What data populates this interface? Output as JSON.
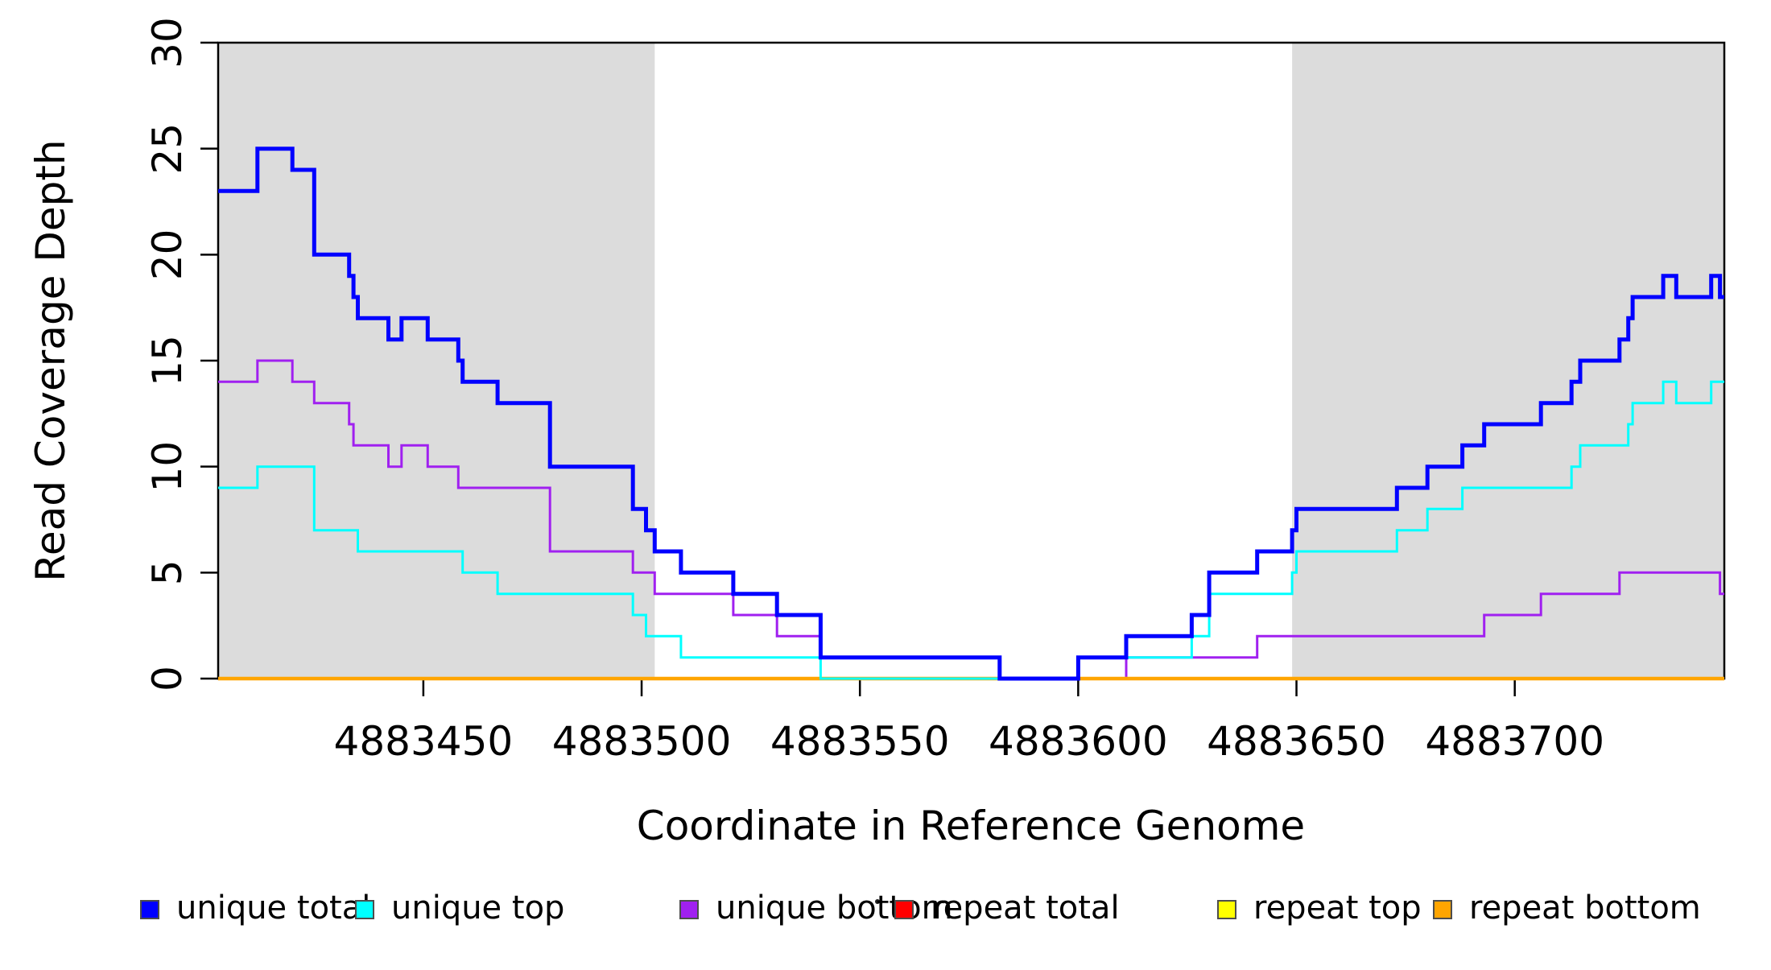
{
  "figure": {
    "shade_color": "#DCDCDC",
    "background": "#FFFFFF",
    "box_color": "#000000",
    "shaded_regions": [
      {
        "from": 4883403,
        "to": 4883503
      },
      {
        "from": 4883649,
        "to": 4883748
      }
    ]
  },
  "chart_data": {
    "type": "line",
    "step": true,
    "title": "",
    "xlabel": "Coordinate in Reference Genome",
    "ylabel": "Read Coverage Depth",
    "xlim": [
      4883403,
      4883748
    ],
    "ylim": [
      0,
      30
    ],
    "x_ticks": [
      4883450,
      4883500,
      4883550,
      4883600,
      4883650,
      4883700
    ],
    "y_ticks": [
      0,
      5,
      10,
      15,
      20,
      25,
      30
    ],
    "grid": false,
    "legend_position": "bottom",
    "x_end": 4883748,
    "series": [
      {
        "name": "repeat total",
        "color": "#FF0000",
        "width": 3,
        "z": 1,
        "points": [
          [
            4883403,
            0
          ]
        ]
      },
      {
        "name": "repeat top",
        "color": "#FFFF00",
        "width": 3,
        "z": 2,
        "points": [
          [
            4883403,
            0
          ]
        ]
      },
      {
        "name": "unique bottom",
        "color": "#A020F0",
        "width": 3,
        "z": 3,
        "points": [
          [
            4883403,
            14
          ],
          [
            4883412,
            15
          ],
          [
            4883420,
            14
          ],
          [
            4883425,
            13
          ],
          [
            4883433,
            12
          ],
          [
            4883434,
            11
          ],
          [
            4883442,
            10
          ],
          [
            4883445,
            11
          ],
          [
            4883451,
            10
          ],
          [
            4883458,
            9
          ],
          [
            4883479,
            6
          ],
          [
            4883498,
            5
          ],
          [
            4883503,
            4
          ],
          [
            4883521,
            3
          ],
          [
            4883531,
            2
          ],
          [
            4883541,
            1
          ],
          [
            4883582,
            0
          ],
          [
            4883611,
            1
          ],
          [
            4883641,
            2
          ],
          [
            4883693,
            3
          ],
          [
            4883706,
            4
          ],
          [
            4883724,
            5
          ],
          [
            4883747,
            4
          ]
        ]
      },
      {
        "name": "repeat bottom",
        "color": "#FFA500",
        "width": 4.5,
        "z": 4,
        "points": [
          [
            4883403,
            0
          ]
        ]
      },
      {
        "name": "unique top",
        "color": "#00FFFF",
        "width": 3,
        "z": 5,
        "points": [
          [
            4883403,
            9
          ],
          [
            4883412,
            10
          ],
          [
            4883425,
            7
          ],
          [
            4883435,
            6
          ],
          [
            4883459,
            5
          ],
          [
            4883467,
            4
          ],
          [
            4883498,
            3
          ],
          [
            4883501,
            2
          ],
          [
            4883509,
            1
          ],
          [
            4883541,
            0
          ],
          [
            4883600,
            1
          ],
          [
            4883626,
            2
          ],
          [
            4883630,
            4
          ],
          [
            4883649,
            5
          ],
          [
            4883650,
            6
          ],
          [
            4883673,
            7
          ],
          [
            4883680,
            8
          ],
          [
            4883688,
            9
          ],
          [
            4883713,
            10
          ],
          [
            4883715,
            11
          ],
          [
            4883726,
            12
          ],
          [
            4883727,
            13
          ],
          [
            4883734,
            14
          ],
          [
            4883737,
            13
          ],
          [
            4883745,
            14
          ]
        ]
      },
      {
        "name": "unique total",
        "color": "#0000FF",
        "width": 5,
        "z": 6,
        "points": [
          [
            4883403,
            23
          ],
          [
            4883412,
            25
          ],
          [
            4883420,
            24
          ],
          [
            4883425,
            20
          ],
          [
            4883433,
            19
          ],
          [
            4883434,
            18
          ],
          [
            4883435,
            17
          ],
          [
            4883442,
            16
          ],
          [
            4883445,
            17
          ],
          [
            4883451,
            16
          ],
          [
            4883458,
            15
          ],
          [
            4883459,
            14
          ],
          [
            4883467,
            13
          ],
          [
            4883479,
            10
          ],
          [
            4883498,
            8
          ],
          [
            4883501,
            7
          ],
          [
            4883503,
            6
          ],
          [
            4883509,
            5
          ],
          [
            4883521,
            4
          ],
          [
            4883531,
            3
          ],
          [
            4883541,
            1
          ],
          [
            4883582,
            0
          ],
          [
            4883600,
            1
          ],
          [
            4883611,
            2
          ],
          [
            4883626,
            3
          ],
          [
            4883630,
            5
          ],
          [
            4883641,
            6
          ],
          [
            4883649,
            7
          ],
          [
            4883650,
            8
          ],
          [
            4883673,
            9
          ],
          [
            4883680,
            10
          ],
          [
            4883688,
            11
          ],
          [
            4883693,
            12
          ],
          [
            4883706,
            13
          ],
          [
            4883713,
            14
          ],
          [
            4883715,
            15
          ],
          [
            4883724,
            16
          ],
          [
            4883726,
            17
          ],
          [
            4883727,
            18
          ],
          [
            4883734,
            19
          ],
          [
            4883737,
            18
          ],
          [
            4883745,
            19
          ],
          [
            4883747,
            18
          ]
        ]
      }
    ]
  },
  "legend": {
    "items": [
      {
        "label": "unique total",
        "color": "#0000FF"
      },
      {
        "label": "unique top",
        "color": "#00FFFF"
      },
      {
        "label": "unique bottom",
        "color": "#A020F0"
      },
      {
        "label": "repeat total",
        "color": "#FF0000"
      },
      {
        "label": "repeat top",
        "color": "#FFFF00"
      },
      {
        "label": "repeat bottom",
        "color": "#FFA500"
      }
    ]
  }
}
